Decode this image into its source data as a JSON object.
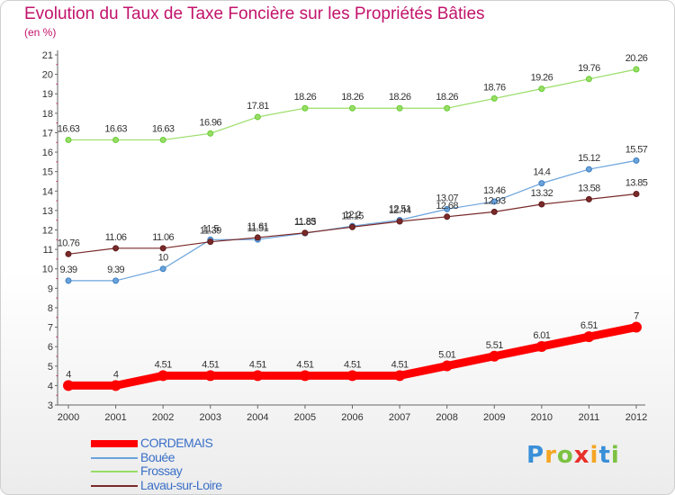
{
  "chart_data": {
    "type": "line",
    "title": "Evolution du Taux de Taxe Foncière sur les Propriétés Bâties",
    "unit_label": "(en %)",
    "categories": [
      "2000",
      "2001",
      "2002",
      "2003",
      "2004",
      "2005",
      "2006",
      "2007",
      "2008",
      "2009",
      "2010",
      "2011",
      "2012"
    ],
    "ylim": [
      3,
      21
    ],
    "yticks": [
      3,
      4,
      5,
      6,
      7,
      8,
      9,
      10,
      11,
      12,
      13,
      14,
      15,
      16,
      17,
      18,
      19,
      20,
      21
    ],
    "grid": false,
    "legend_position": "bottom-left",
    "series": [
      {
        "name": "CORDEMAIS",
        "color": "#ff0000",
        "width": 9,
        "values": [
          4,
          4,
          4.51,
          4.51,
          4.51,
          4.51,
          4.51,
          4.51,
          5.01,
          5.51,
          6.01,
          6.51,
          7
        ],
        "labels": [
          "4",
          "4",
          "4.51",
          "4.51",
          "4.51",
          "4.51",
          "4.51",
          "4.51",
          "5.01",
          "5.51",
          "6.01",
          "6.51",
          "7"
        ]
      },
      {
        "name": "Bouée",
        "color": "#6aa3dc",
        "marker": "#3f7fc0",
        "width": 1.2,
        "values": [
          9.39,
          9.39,
          10,
          11.5,
          11.51,
          11.83,
          12.2,
          12.51,
          13.07,
          13.46,
          14.4,
          15.12,
          15.57
        ],
        "labels": [
          "9.39",
          "9.39",
          "10",
          "11.5",
          "11.51",
          "11.83",
          "12.2",
          "12.51",
          "13.07",
          "13.46",
          "14.4",
          "15.12",
          "15.57"
        ]
      },
      {
        "name": "Frossay",
        "color": "#99dd66",
        "marker": "#66cc33",
        "width": 1.2,
        "values": [
          16.63,
          16.63,
          16.63,
          16.96,
          17.81,
          18.26,
          18.26,
          18.26,
          18.26,
          18.76,
          19.26,
          19.76,
          20.26
        ],
        "labels": [
          "16.63",
          "16.63",
          "16.63",
          "16.96",
          "17.81",
          "18.26",
          "18.26",
          "18.26",
          "18.26",
          "18.76",
          "19.26",
          "19.76",
          "20.26"
        ]
      },
      {
        "name": "Lavau-sur-Loire",
        "color": "#7a2a2a",
        "marker": "#5e1a1a",
        "width": 1.2,
        "values": [
          10.76,
          11.06,
          11.06,
          11.39,
          11.61,
          11.85,
          12.15,
          12.44,
          12.68,
          12.93,
          13.32,
          13.58,
          13.85
        ],
        "labels": [
          "10.76",
          "11.06",
          "11.06",
          "11.39",
          "11.61",
          "11.85",
          "12.15",
          "12.44",
          "12.68",
          "12.93",
          "13.32",
          "13.58",
          "13.85"
        ]
      }
    ]
  },
  "logo": {
    "letters": [
      "P",
      "r",
      "o",
      "x",
      "i",
      "t",
      "i"
    ],
    "colors": [
      "#3a8fd8",
      "#f5a623",
      "#7cc242",
      "#e8302a",
      "#f5a623",
      "#3a8fd8",
      "#7cc242"
    ]
  }
}
